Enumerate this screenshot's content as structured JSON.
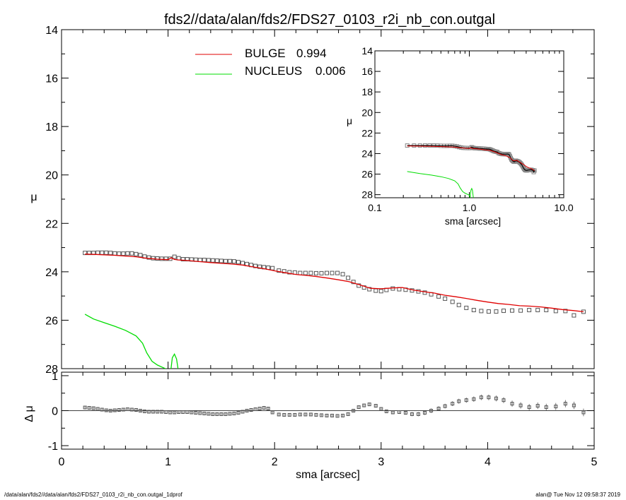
{
  "page": {
    "title": "fds2//data/alan/fds2/FDS27_0103_r2i_nb_con.outgal",
    "footer_left": "/data/alan/fds2//data/alan/fds2/FDS27_0103_r2i_nb_con.outgal_1dprof",
    "footer_right": "alan@  Tue Nov 12 09:58:37 2019"
  },
  "colors": {
    "bulge": "#e00000",
    "nucleus": "#00dd00",
    "data": "#555555",
    "axis": "#000000"
  },
  "legend": [
    {
      "name": "BULGE",
      "value": "0.994",
      "color": "#e00000"
    },
    {
      "name": "NUCLEUS",
      "value": "0.006",
      "color": "#00dd00"
    }
  ],
  "chart_data": [
    {
      "id": "main",
      "type": "line",
      "xlabel": "",
      "ylabel": "μ",
      "xlim": [
        0,
        5
      ],
      "ylim": [
        28,
        14
      ],
      "x_ticks": [
        "0",
        "1",
        "2",
        "3",
        "4",
        "5"
      ],
      "y_ticks": [
        "14",
        "16",
        "18",
        "20",
        "22",
        "24",
        "26",
        "28"
      ],
      "series": [
        {
          "name": "data",
          "style": "squares",
          "x": [
            0.22,
            0.26,
            0.3,
            0.34,
            0.38,
            0.42,
            0.46,
            0.5,
            0.54,
            0.58,
            0.62,
            0.66,
            0.7,
            0.74,
            0.78,
            0.82,
            0.86,
            0.9,
            0.94,
            0.98,
            1.02,
            1.06,
            1.1,
            1.14,
            1.18,
            1.22,
            1.26,
            1.3,
            1.34,
            1.38,
            1.42,
            1.46,
            1.5,
            1.54,
            1.58,
            1.62,
            1.66,
            1.7,
            1.74,
            1.78,
            1.82,
            1.86,
            1.9,
            1.94,
            1.98,
            2.04,
            2.09,
            2.14,
            2.19,
            2.24,
            2.29,
            2.34,
            2.39,
            2.44,
            2.49,
            2.54,
            2.59,
            2.64,
            2.69,
            2.74,
            2.79,
            2.84,
            2.89,
            2.95,
            3.0,
            3.05,
            3.11,
            3.17,
            3.23,
            3.29,
            3.35,
            3.41,
            3.47,
            3.54,
            3.6,
            3.67,
            3.73,
            3.8,
            3.87,
            3.94,
            4.01,
            4.08,
            4.15,
            4.23,
            4.31,
            4.39,
            4.47,
            4.55,
            4.64,
            4.73,
            4.81,
            4.9
          ],
          "y": [
            23.22,
            23.22,
            23.22,
            23.21,
            23.21,
            23.21,
            23.22,
            23.24,
            23.25,
            23.25,
            23.24,
            23.24,
            23.27,
            23.31,
            23.37,
            23.41,
            23.44,
            23.45,
            23.46,
            23.46,
            23.46,
            23.38,
            23.44,
            23.48,
            23.48,
            23.49,
            23.5,
            23.51,
            23.51,
            23.52,
            23.53,
            23.54,
            23.55,
            23.56,
            23.56,
            23.57,
            23.6,
            23.64,
            23.68,
            23.72,
            23.76,
            23.79,
            23.81,
            23.83,
            23.85,
            23.95,
            23.98,
            24.02,
            24.03,
            24.05,
            24.05,
            24.05,
            24.06,
            24.06,
            24.05,
            24.05,
            24.05,
            24.1,
            24.25,
            24.42,
            24.57,
            24.65,
            24.72,
            24.78,
            24.8,
            24.75,
            24.69,
            24.72,
            24.74,
            24.77,
            24.81,
            24.86,
            24.93,
            25.02,
            25.11,
            25.24,
            25.37,
            25.49,
            25.58,
            25.62,
            25.64,
            25.64,
            25.61,
            25.6,
            25.6,
            25.58,
            25.58,
            25.58,
            25.62,
            25.62,
            25.8,
            25.65
          ]
        },
        {
          "name": "BULGE",
          "style": "line",
          "color": "#e00000",
          "x": [
            0.22,
            0.3,
            0.4,
            0.5,
            0.6,
            0.7,
            0.8,
            0.9,
            1.0,
            1.03,
            1.06,
            1.1,
            1.2,
            1.3,
            1.4,
            1.5,
            1.6,
            1.7,
            1.8,
            1.9,
            2.0,
            2.1,
            2.2,
            2.3,
            2.4,
            2.5,
            2.6,
            2.7,
            2.8,
            2.9,
            3.0,
            3.1,
            3.2,
            3.3,
            3.4,
            3.5,
            3.6,
            3.7,
            3.8,
            3.9,
            4.0,
            4.1,
            4.2,
            4.3,
            4.4,
            4.5,
            4.6,
            4.7,
            4.8,
            4.9
          ],
          "y": [
            23.27,
            23.28,
            23.3,
            23.32,
            23.35,
            23.38,
            23.44,
            23.48,
            23.5,
            23.42,
            23.49,
            23.51,
            23.54,
            23.58,
            23.62,
            23.65,
            23.68,
            23.72,
            23.8,
            23.87,
            23.96,
            24.04,
            24.11,
            24.15,
            24.2,
            24.26,
            24.33,
            24.41,
            24.54,
            24.68,
            24.7,
            24.67,
            24.65,
            24.75,
            24.82,
            24.88,
            24.97,
            25.03,
            25.1,
            25.18,
            25.25,
            25.31,
            25.35,
            25.4,
            25.42,
            25.45,
            25.5,
            25.56,
            25.6,
            25.65
          ]
        },
        {
          "name": "NUCLEUS",
          "style": "line",
          "color": "#00dd00",
          "x": [
            0.22,
            0.3,
            0.4,
            0.5,
            0.6,
            0.7,
            0.76,
            0.8,
            0.85,
            0.9,
            0.95,
            1.0,
            1.02,
            1.04,
            1.06,
            1.08,
            1.1,
            1.12
          ],
          "y": [
            25.75,
            25.95,
            26.1,
            26.25,
            26.42,
            26.65,
            26.95,
            27.35,
            27.7,
            27.85,
            27.95,
            28.05,
            28.3,
            27.55,
            27.4,
            27.6,
            28.2,
            28.4
          ]
        }
      ]
    },
    {
      "id": "residual",
      "type": "scatter",
      "xlabel": "sma [arcsec]",
      "ylabel": "Δ μ",
      "xlim": [
        0,
        5
      ],
      "ylim": [
        -1.1,
        1.1
      ],
      "x_ticks": [
        "0",
        "1",
        "2",
        "3",
        "4",
        "5"
      ],
      "y_ticks": [
        "1",
        "0",
        "-1"
      ],
      "series": [
        {
          "name": "residual",
          "x": [
            0.22,
            0.26,
            0.3,
            0.34,
            0.38,
            0.42,
            0.46,
            0.5,
            0.54,
            0.58,
            0.62,
            0.66,
            0.7,
            0.74,
            0.78,
            0.82,
            0.86,
            0.9,
            0.94,
            0.98,
            1.02,
            1.06,
            1.1,
            1.14,
            1.18,
            1.22,
            1.26,
            1.3,
            1.34,
            1.38,
            1.42,
            1.46,
            1.5,
            1.54,
            1.58,
            1.62,
            1.66,
            1.7,
            1.74,
            1.78,
            1.82,
            1.86,
            1.9,
            1.94,
            1.98,
            2.04,
            2.09,
            2.14,
            2.19,
            2.24,
            2.29,
            2.34,
            2.39,
            2.44,
            2.49,
            2.54,
            2.59,
            2.64,
            2.69,
            2.74,
            2.79,
            2.84,
            2.89,
            2.95,
            3.0,
            3.05,
            3.11,
            3.17,
            3.23,
            3.29,
            3.35,
            3.41,
            3.47,
            3.54,
            3.6,
            3.67,
            3.73,
            3.8,
            3.87,
            3.94,
            4.01,
            4.08,
            4.15,
            4.23,
            4.31,
            4.39,
            4.47,
            4.55,
            4.64,
            4.73,
            4.81,
            4.9
          ],
          "y": [
            0.09,
            0.08,
            0.07,
            0.05,
            0.03,
            0.01,
            0.0,
            0.01,
            0.02,
            0.03,
            0.04,
            0.03,
            0.02,
            0.0,
            -0.02,
            -0.03,
            -0.03,
            -0.03,
            -0.03,
            -0.04,
            -0.05,
            -0.05,
            -0.04,
            -0.04,
            -0.04,
            -0.05,
            -0.06,
            -0.07,
            -0.08,
            -0.09,
            -0.1,
            -0.1,
            -0.1,
            -0.1,
            -0.09,
            -0.08,
            -0.06,
            -0.03,
            0.0,
            0.02,
            0.04,
            0.06,
            0.08,
            0.06,
            -0.05,
            -0.11,
            -0.12,
            -0.12,
            -0.12,
            -0.11,
            -0.11,
            -0.11,
            -0.12,
            -0.13,
            -0.14,
            -0.14,
            -0.15,
            -0.14,
            -0.1,
            0.0,
            0.1,
            0.15,
            0.18,
            0.14,
            0.05,
            -0.02,
            -0.05,
            -0.04,
            -0.06,
            -0.1,
            -0.1,
            -0.06,
            0.0,
            0.06,
            0.13,
            0.2,
            0.27,
            0.3,
            0.33,
            0.38,
            0.38,
            0.35,
            0.3,
            0.2,
            0.15,
            0.1,
            0.14,
            0.1,
            0.12,
            0.2,
            0.15,
            -0.05
          ]
        }
      ]
    },
    {
      "id": "inset",
      "type": "line",
      "xlabel": "sma [arcsec]",
      "ylabel": "μ",
      "xscale": "log",
      "xlim": [
        0.1,
        10
      ],
      "ylim": [
        28.3,
        14
      ],
      "x_ticks": [
        "0.1",
        "1.0",
        "10.0"
      ],
      "y_ticks": [
        "14",
        "16",
        "18",
        "20",
        "22",
        "24",
        "26",
        "28"
      ]
    }
  ]
}
